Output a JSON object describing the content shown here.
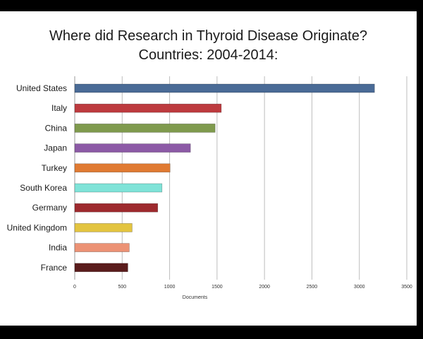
{
  "chart_data": {
    "type": "bar",
    "orientation": "horizontal",
    "title_line1": "Where did Research in Thyroid Disease Originate?",
    "title_line2": "Countries: 2004-2014:",
    "xlabel": "Documents",
    "ylabel": "",
    "xlim": [
      0,
      3500
    ],
    "xticks": [
      0,
      500,
      1000,
      1500,
      2000,
      2500,
      3000,
      3500
    ],
    "xtick_labels": [
      "0",
      "500",
      "1000",
      "1500",
      "2000",
      "2500",
      "3000",
      "3500"
    ],
    "grid": "vertical",
    "legend": "none",
    "categories": [
      "United States",
      "Italy",
      "China",
      "Japan",
      "Turkey",
      "South Korea",
      "Germany",
      "United Kingdom",
      "India",
      "France"
    ],
    "values": [
      3160,
      1545,
      1480,
      1220,
      1005,
      920,
      875,
      605,
      575,
      560
    ],
    "colors": [
      "#4a6b96",
      "#bd3a3e",
      "#7f9a4d",
      "#8c5aa6",
      "#e07a32",
      "#7fe3d8",
      "#9e2a2e",
      "#e3c440",
      "#ec9275",
      "#5a1c1c"
    ]
  }
}
